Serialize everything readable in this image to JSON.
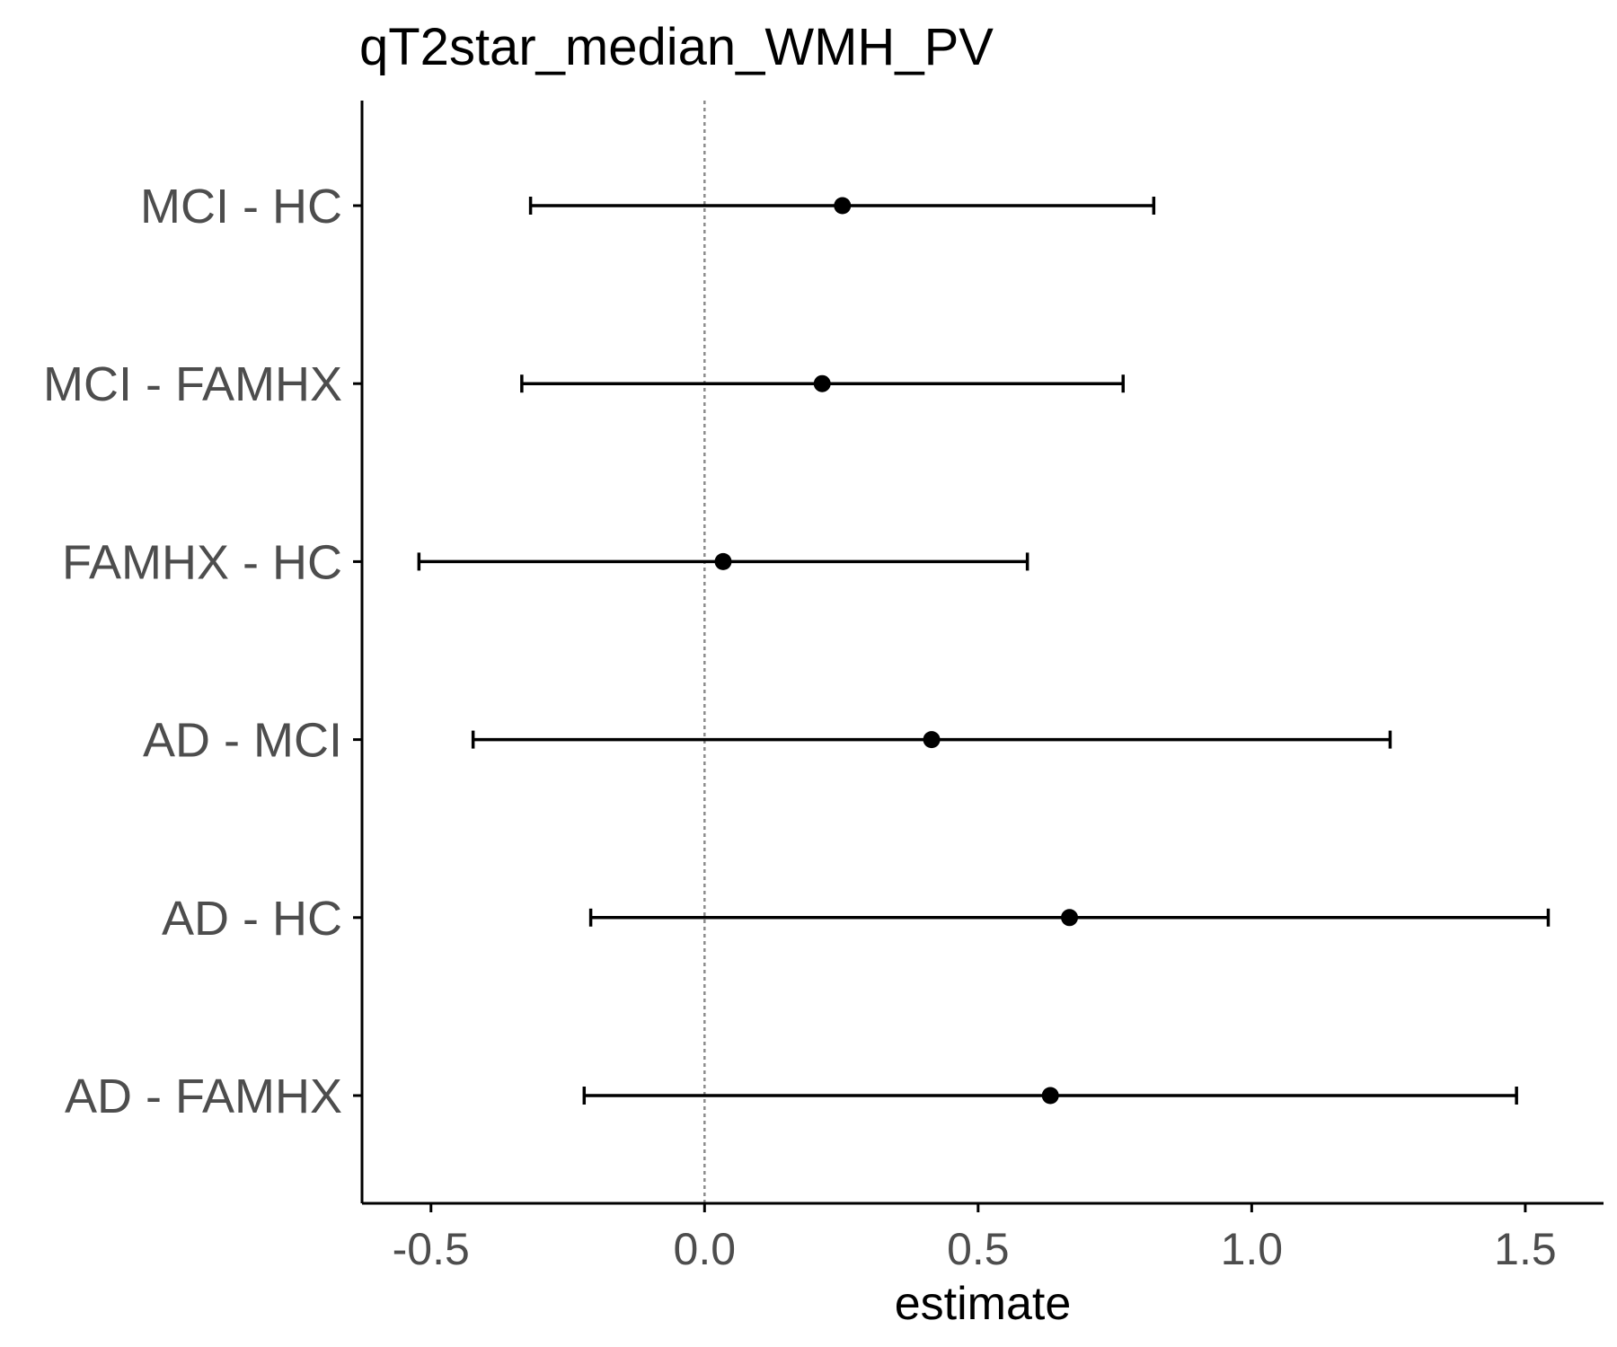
{
  "chart_data": {
    "type": "scatter",
    "title": "qT2star_median_WMH_PV",
    "xlabel": "estimate",
    "ylabel": "",
    "xlim": [
      -0.626,
      1.643
    ],
    "x_ticks": [
      "-0.5",
      "0.0",
      "0.5",
      "1.0",
      "1.5"
    ],
    "x_tick_values": [
      -0.5,
      0.0,
      0.5,
      1.0,
      1.5
    ],
    "reference_line": {
      "x": 0,
      "style": "dotted",
      "color": "#8c8c8c"
    },
    "categories": [
      "MCI - HC",
      "MCI - FAMHX",
      "FAMHX - HC",
      "AD - MCI",
      "AD - HC",
      "AD - FAMHX"
    ],
    "series": [
      {
        "estimate": [
          0.252,
          0.215,
          0.034,
          0.415,
          0.667,
          0.632
        ],
        "conf_low": [
          -0.318,
          -0.334,
          -0.522,
          -0.423,
          -0.208,
          -0.22
        ],
        "conf_high": [
          0.821,
          0.765,
          0.59,
          1.253,
          1.542,
          1.484
        ]
      }
    ],
    "grid": false,
    "colors": {
      "points": "#000000",
      "axis": "#000000",
      "tick_text": "#4d4d4d"
    }
  }
}
